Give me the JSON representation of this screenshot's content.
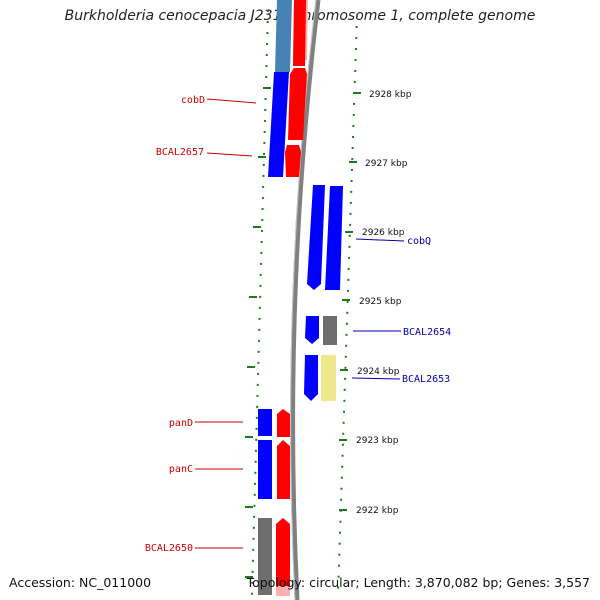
{
  "header": {
    "title": "Burkholderia cenocepacia J2315 chromosome 1, complete genome"
  },
  "footer": {
    "accession": "Accession: NC_011000",
    "topology": "Topology: circular; Length: 3,870,082 bp; Genes: 3,557"
  },
  "scale": {
    "ticks": [
      {
        "label": "2928 kbp"
      },
      {
        "label": "2927 kbp"
      },
      {
        "label": "2926 kbp"
      },
      {
        "label": "2925 kbp"
      },
      {
        "label": "2924 kbp"
      },
      {
        "label": "2923 kbp"
      },
      {
        "label": "2922 kbp"
      }
    ]
  },
  "genes": {
    "left": [
      {
        "label": "cobD"
      },
      {
        "label": "BCAL2657"
      },
      {
        "label": "panD"
      },
      {
        "label": "panC"
      },
      {
        "label": "BCAL2650"
      }
    ],
    "right": [
      {
        "label": "cobQ"
      },
      {
        "label": "BCAL2654"
      },
      {
        "label": "BCAL2653"
      }
    ]
  },
  "colors": {
    "reverse_label": "#cc0000",
    "forward_label": "#0000aa",
    "cds_blue": "#0000ff",
    "cds_red": "#ff0000",
    "cds_gray": "#6e6e6e",
    "cds_yellow": "#f0e68c",
    "tick_green": "#1f7a1f",
    "backbone": "#808080"
  }
}
